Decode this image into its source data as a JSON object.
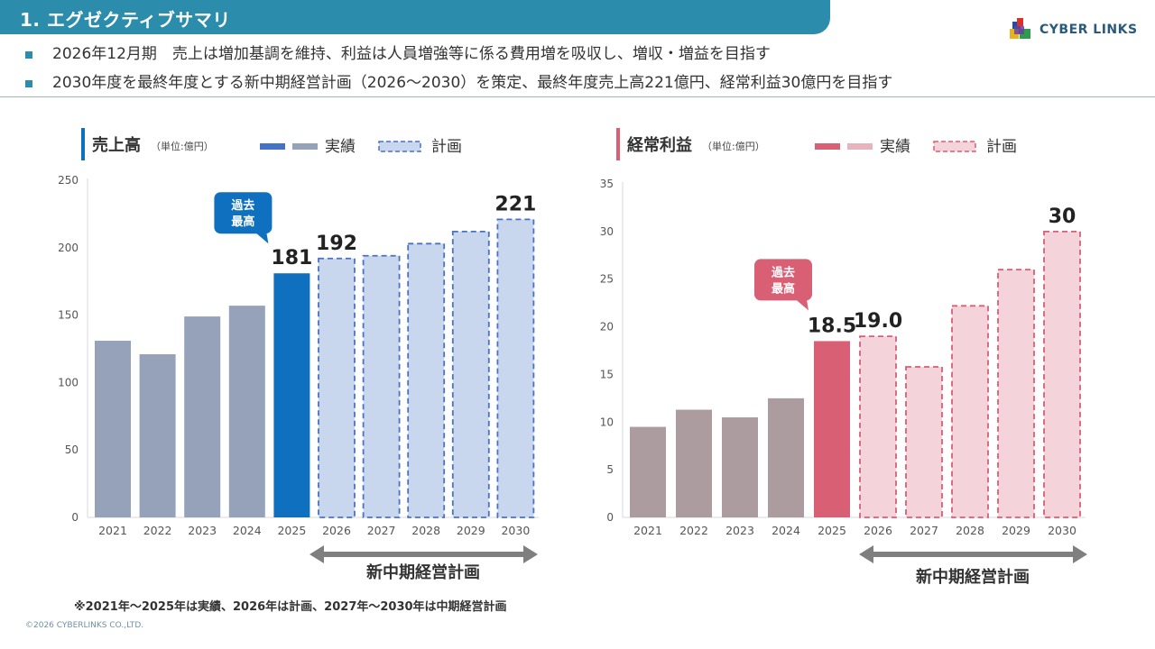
{
  "header": {
    "title": "1. エグゼクティブサマリ"
  },
  "logo": {
    "text": "CYBER LINKS"
  },
  "bullets": [
    "2026年12月期　売上は増加基調を維持、利益は人員増強等に係る費用増を吸収し、増収・増益を目指す",
    "2030年度を最終年度とする新中期経営計画（2026～2030）を策定、最終年度売上高221億円、経常利益30億円を目指す"
  ],
  "colors": {
    "header": "#2b8cab",
    "sales_actual": "#95a2b9",
    "sales_highlight": "#0f70c0",
    "sales_plan_fill": "#c8d6ee",
    "sales_plan_border": "#4a72c4",
    "profit_actual": "#ad9c9f",
    "profit_highlight": "#d95f74",
    "profit_plan_fill": "#f5d3da",
    "profit_plan_border": "#d95f74",
    "arrow": "#7f7f7f"
  },
  "chart_data": [
    {
      "type": "bar",
      "title": "売上高",
      "unit": "（単位:億円）",
      "legend": {
        "actual": "実績",
        "plan": "計画"
      },
      "categories": [
        "2021",
        "2022",
        "2023",
        "2024",
        "2025",
        "2026",
        "2027",
        "2028",
        "2029",
        "2030"
      ],
      "values": [
        131,
        121,
        149,
        157,
        181,
        192,
        194,
        203,
        212,
        221
      ],
      "kinds": [
        "actual",
        "actual",
        "actual",
        "actual",
        "highlight",
        "plan",
        "plan",
        "plan",
        "plan",
        "plan"
      ],
      "data_labels": {
        "4": "181",
        "5": "192",
        "9": "221"
      },
      "yticks": [
        0,
        50,
        100,
        150,
        200,
        250
      ],
      "ylim": [
        0,
        250
      ],
      "callout": {
        "text1": "過去",
        "text2": "最高",
        "index": 4
      },
      "plan_range_label": "新中期経営計画"
    },
    {
      "type": "bar",
      "title": "経常利益",
      "unit": "（単位:億円）",
      "legend": {
        "actual": "実績",
        "plan": "計画"
      },
      "categories": [
        "2021",
        "2022",
        "2023",
        "2024",
        "2025",
        "2026",
        "2027",
        "2028",
        "2029",
        "2030"
      ],
      "values": [
        9.5,
        11.3,
        10.5,
        12.5,
        18.5,
        19.0,
        15.8,
        22.2,
        26.0,
        30.0
      ],
      "kinds": [
        "actual",
        "actual",
        "actual",
        "actual",
        "highlight",
        "plan",
        "plan",
        "plan",
        "plan",
        "plan"
      ],
      "data_labels": {
        "4": "18.5",
        "5": "19.0",
        "9": "30"
      },
      "yticks": [
        0,
        5,
        10,
        15,
        20,
        25,
        30,
        35
      ],
      "ylim": [
        0,
        35
      ],
      "callout": {
        "text1": "過去",
        "text2": "最高",
        "index": 4
      },
      "plan_range_label": "新中期経営計画"
    }
  ],
  "footnote": "※2021年～2025年は実績、2026年は計画、2027年～2030年は中期経営計画",
  "copyright": "©2026 CYBERLINKS CO.,LTD."
}
